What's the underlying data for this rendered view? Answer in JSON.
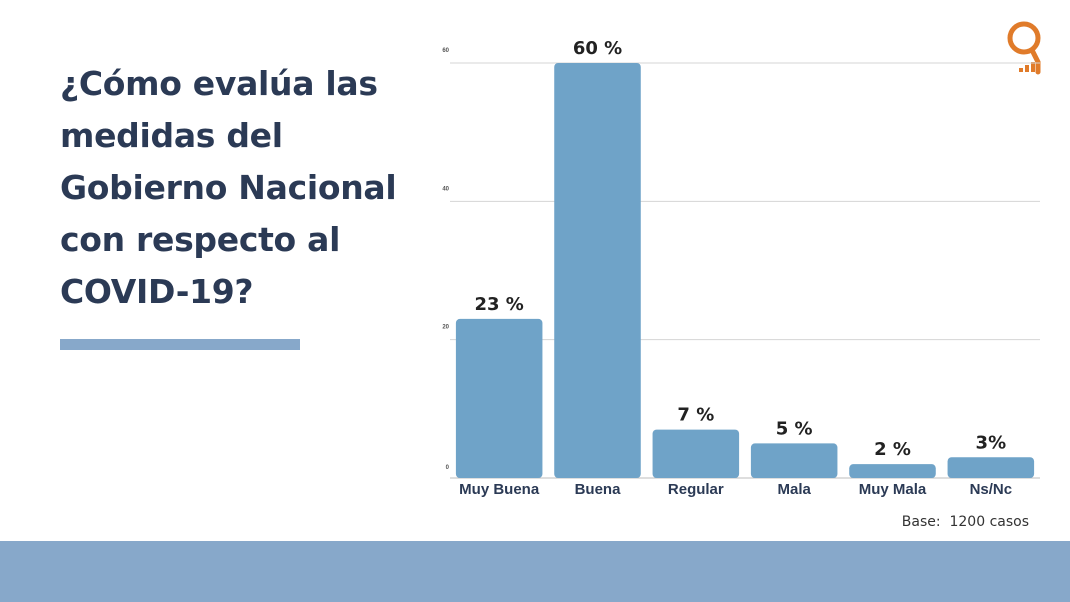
{
  "slide": {
    "question": "¿Cómo evalúa las medidas del Gobierno Nacional con respecto al COVID-19?",
    "base_note": "Base:  1200 casos"
  },
  "colors": {
    "bar": "#6fa3c8",
    "title": "#2b3a55",
    "accent": "#87a8ca",
    "logo": "#e07b2a"
  },
  "logo_icon": "q-logo-with-bars",
  "chart_data": {
    "type": "bar",
    "categories": [
      "Muy Buena",
      "Buena",
      "Regular",
      "Mala",
      "Muy Mala",
      "Ns/Nc"
    ],
    "values": [
      23,
      60,
      7,
      5,
      2,
      3
    ],
    "data_labels": [
      "23 %",
      "60 %",
      "7 %",
      "5 %",
      "2 %",
      "3%"
    ],
    "y_ticks": [
      0,
      20,
      40,
      60
    ],
    "ylim": [
      0,
      60
    ],
    "grid": true,
    "legend": "none",
    "title": "",
    "xlabel": "",
    "ylabel": ""
  }
}
